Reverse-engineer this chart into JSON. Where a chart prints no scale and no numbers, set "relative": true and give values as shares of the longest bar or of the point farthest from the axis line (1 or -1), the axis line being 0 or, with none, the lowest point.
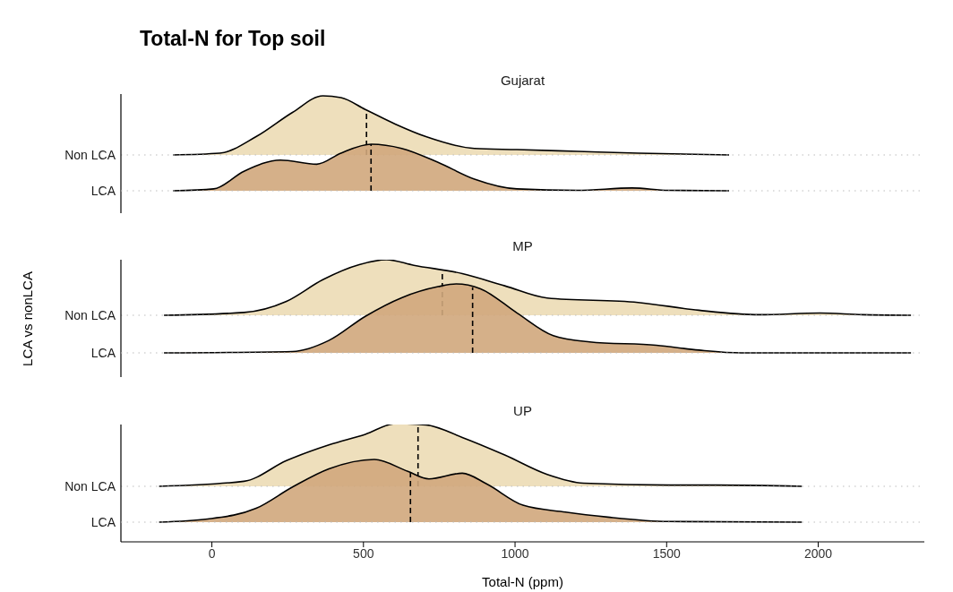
{
  "chart_data": [
    {
      "type": "area",
      "title": "Total-N for Top soil",
      "subtitle": "Gujarat",
      "relative": true,
      "xlim": [
        -300,
        2350
      ],
      "tick_labels": false,
      "series": [
        {
          "name": "Non LCA",
          "color": "#ecdbb5",
          "x": [
            -128,
            26,
            146,
            266,
            366,
            426,
            506,
            606,
            706,
            866,
            1006,
            1206,
            1406,
            1706
          ],
          "values": [
            0,
            0.03,
            0.31,
            0.72,
            1,
            0.97,
            0.77,
            0.52,
            0.31,
            0.11,
            0.09,
            0.06,
            0.03,
            0
          ]
        }
      ],
      "ref_lines": [
        {
          "axis": "x",
          "value": 510,
          "line_style": "dashed",
          "color": "#000000"
        },
        {
          "axis": "y",
          "value": 0,
          "line_style": "dotted",
          "color": "#bdbdbd"
        }
      ]
    },
    {
      "type": "area",
      "relative": true,
      "xlim": [
        -300,
        2350
      ],
      "tick_labels": false,
      "series": [
        {
          "name": "LCA",
          "color": "#d0a77c",
          "x": [
            -128,
            6,
            106,
            226,
            346,
            426,
            526,
            626,
            746,
            866,
            1006,
            1206,
            1386,
            1506,
            1706
          ],
          "values": [
            0,
            0.04,
            0.42,
            0.66,
            0.57,
            0.81,
            1,
            0.91,
            0.61,
            0.25,
            0.04,
            0.01,
            0.06,
            0.01,
            0
          ]
        }
      ],
      "ref_lines": [
        {
          "axis": "x",
          "value": 525,
          "line_style": "dashed",
          "color": "#000000"
        },
        {
          "axis": "y",
          "value": 0,
          "line_style": "dotted",
          "color": "#bdbdbd"
        }
      ]
    },
    {
      "type": "area",
      "subtitle": "MP",
      "ylabel": "LCA vs nonLCA",
      "relative": true,
      "xlim": [
        -300,
        2350
      ],
      "tick_labels": false,
      "series": [
        {
          "name": "Non LCA",
          "color": "#ecdbb5",
          "x": [
            -158,
            106,
            246,
            366,
            486,
            576,
            666,
            826,
            966,
            1106,
            1406,
            1606,
            1806,
            2006,
            2146,
            2306
          ],
          "values": [
            0,
            0.05,
            0.25,
            0.64,
            0.91,
            1,
            0.9,
            0.75,
            0.53,
            0.31,
            0.23,
            0.09,
            0.01,
            0.04,
            0.01,
            0
          ]
        }
      ],
      "ref_lines": [
        {
          "axis": "x",
          "value": 760,
          "line_style": "dashed",
          "color": "#000000"
        },
        {
          "axis": "y",
          "value": 0,
          "line_style": "dotted",
          "color": "#bdbdbd"
        }
      ]
    },
    {
      "type": "area",
      "relative": true,
      "xlim": [
        -300,
        2350
      ],
      "tick_labels": false,
      "series": [
        {
          "name": "LCA",
          "color": "#d0a77c",
          "x": [
            -158,
            266,
            386,
            506,
            626,
            746,
            806,
            886,
            1006,
            1126,
            1246,
            1466,
            1606,
            1746,
            2306
          ],
          "values": [
            0,
            0.02,
            0.18,
            0.53,
            0.8,
            0.96,
            1,
            0.93,
            0.58,
            0.25,
            0.16,
            0.11,
            0.04,
            0,
            0
          ]
        }
      ],
      "ref_lines": [
        {
          "axis": "x",
          "value": 860,
          "line_style": "dashed",
          "color": "#000000"
        },
        {
          "axis": "y",
          "value": 0,
          "line_style": "dotted",
          "color": "#bdbdbd"
        }
      ]
    },
    {
      "type": "area",
      "subtitle": "UP",
      "relative": true,
      "xlim": [
        -300,
        2350
      ],
      "tick_labels": false,
      "series": [
        {
          "name": "Non LCA",
          "color": "#ecdbb5",
          "x": [
            -174,
            106,
            246,
            386,
            506,
            606,
            706,
            826,
            966,
            1106,
            1226,
            1506,
            1666,
            1946
          ],
          "values": [
            0,
            0.08,
            0.41,
            0.66,
            0.83,
            1,
            0.98,
            0.78,
            0.5,
            0.19,
            0.05,
            0.02,
            0.02,
            0
          ]
        }
      ],
      "ref_lines": [
        {
          "axis": "x",
          "value": 680,
          "line_style": "dashed",
          "color": "#000000"
        },
        {
          "axis": "y",
          "value": 0,
          "line_style": "dotted",
          "color": "#bdbdbd"
        }
      ]
    },
    {
      "type": "area",
      "xlabel": "Total-N (ppm)",
      "relative": true,
      "xlim": [
        -300,
        2350
      ],
      "xticks": [
        0,
        500,
        1000,
        1500,
        2000
      ],
      "tick_labels": "x",
      "series": [
        {
          "name": "LCA",
          "color": "#d0a77c",
          "x": [
            -174,
            -14,
            146,
            266,
            386,
            536,
            646,
            716,
            826,
            906,
            1026,
            1166,
            1306,
            1506,
            1946
          ],
          "values": [
            0,
            0.05,
            0.22,
            0.56,
            0.85,
            1,
            0.81,
            0.69,
            0.78,
            0.61,
            0.27,
            0.16,
            0.08,
            0.01,
            0
          ]
        }
      ],
      "ref_lines": [
        {
          "axis": "x",
          "value": 655,
          "line_style": "dashed",
          "color": "#000000"
        },
        {
          "axis": "y",
          "value": 0,
          "line_style": "dotted",
          "color": "#bdbdbd"
        }
      ]
    }
  ]
}
